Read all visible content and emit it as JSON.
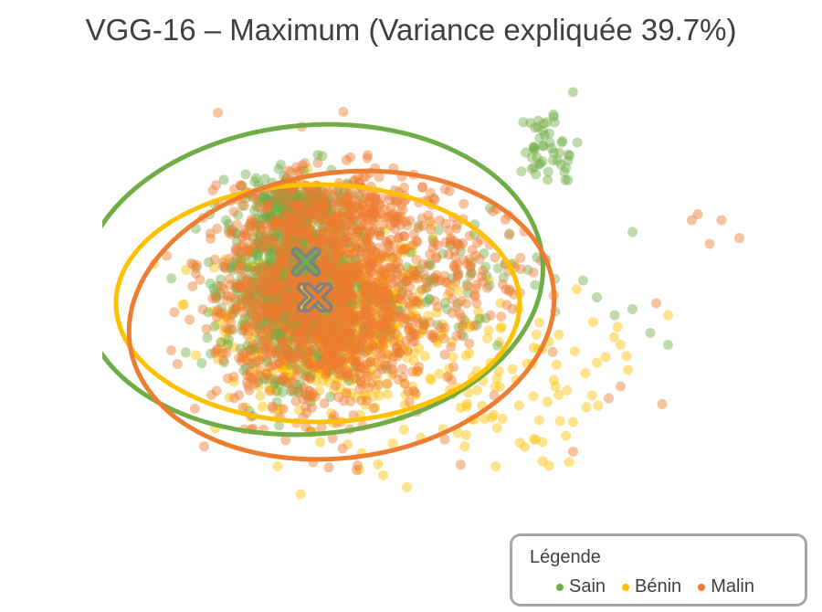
{
  "chart_data": {
    "type": "scatter",
    "title": "VGG-16 – Maximum (Variance expliquée 39.7%)",
    "xlabel": "",
    "ylabel": "",
    "grid": false,
    "legend_position": "bottom-right",
    "legend_title": "Légende",
    "xlim": [
      -3,
      8
    ],
    "ylim": [
      -3.5,
      3.5
    ],
    "series": [
      {
        "name": "Sain",
        "color": "#70ad47",
        "centroid": [
          0.0,
          0.9
        ],
        "ellipse": {
          "center": [
            0.1,
            0.6
          ],
          "rx": 3.9,
          "ry": 2.6,
          "angle": -5
        },
        "clusters": [
          {
            "center": [
              -0.2,
              0.5
            ],
            "sx": 0.55,
            "sy": 0.75,
            "n": 900
          },
          {
            "center": [
              -0.2,
              1.9
            ],
            "sx": 0.35,
            "sy": 0.18,
            "n": 200
          },
          {
            "center": [
              2.3,
              0.6
            ],
            "sx": 0.9,
            "sy": 0.5,
            "n": 70
          },
          {
            "center": [
              4.1,
              2.8
            ],
            "sx": 0.25,
            "sy": 0.35,
            "n": 50
          }
        ],
        "points": [
          [
            5.5,
            0.1
          ],
          [
            5.8,
            -0.3
          ],
          [
            6.1,
            -0.5
          ],
          [
            5.2,
            0.0
          ],
          [
            5.5,
            1.4
          ],
          [
            3.1,
            1.8
          ],
          [
            4.9,
            0.3
          ],
          [
            0.2,
            2.7
          ]
        ]
      },
      {
        "name": "Bénin",
        "color": "#ffc000",
        "centroid": [
          0.1,
          0.3
        ],
        "ellipse": {
          "center": [
            0.2,
            0.2
          ],
          "rx": 3.4,
          "ry": 2.0,
          "angle": 0
        },
        "clusters": [
          {
            "center": [
              0.4,
              0.0
            ],
            "sx": 0.85,
            "sy": 0.75,
            "n": 700
          },
          {
            "center": [
              2.8,
              -1.0
            ],
            "sx": 1.1,
            "sy": 0.8,
            "n": 120
          }
        ],
        "points": [
          [
            0.9,
            -2.6
          ],
          [
            1.3,
            -2.7
          ],
          [
            1.7,
            -2.9
          ],
          [
            4.2,
            -1.2
          ],
          [
            4.5,
            -1.8
          ],
          [
            5.3,
            -0.5
          ],
          [
            6.1,
            0.0
          ],
          [
            4.9,
            -0.8
          ]
        ]
      },
      {
        "name": "Malin",
        "color": "#ed7d31",
        "centroid": [
          0.2,
          0.3
        ],
        "ellipse": {
          "center": [
            0.6,
            0.0
          ],
          "rx": 3.6,
          "ry": 2.4,
          "angle": -8
        },
        "clusters": [
          {
            "center": [
              0.3,
              0.2
            ],
            "sx": 0.9,
            "sy": 0.9,
            "n": 1300
          },
          {
            "center": [
              0.6,
              1.7
            ],
            "sx": 0.8,
            "sy": 0.35,
            "n": 250
          },
          {
            "center": [
              2.8,
              0.9
            ],
            "sx": 0.6,
            "sy": 0.4,
            "n": 90
          }
        ],
        "points": [
          [
            6.5,
            1.6
          ],
          [
            6.8,
            1.2
          ],
          [
            7.0,
            1.6
          ],
          [
            7.3,
            1.3
          ],
          [
            6.6,
            1.7
          ],
          [
            5.9,
            0.2
          ],
          [
            5.3,
            -1.2
          ],
          [
            6.0,
            -1.5
          ],
          [
            4.5,
            -2.3
          ],
          [
            5.1,
            -1.4
          ]
        ]
      }
    ]
  }
}
